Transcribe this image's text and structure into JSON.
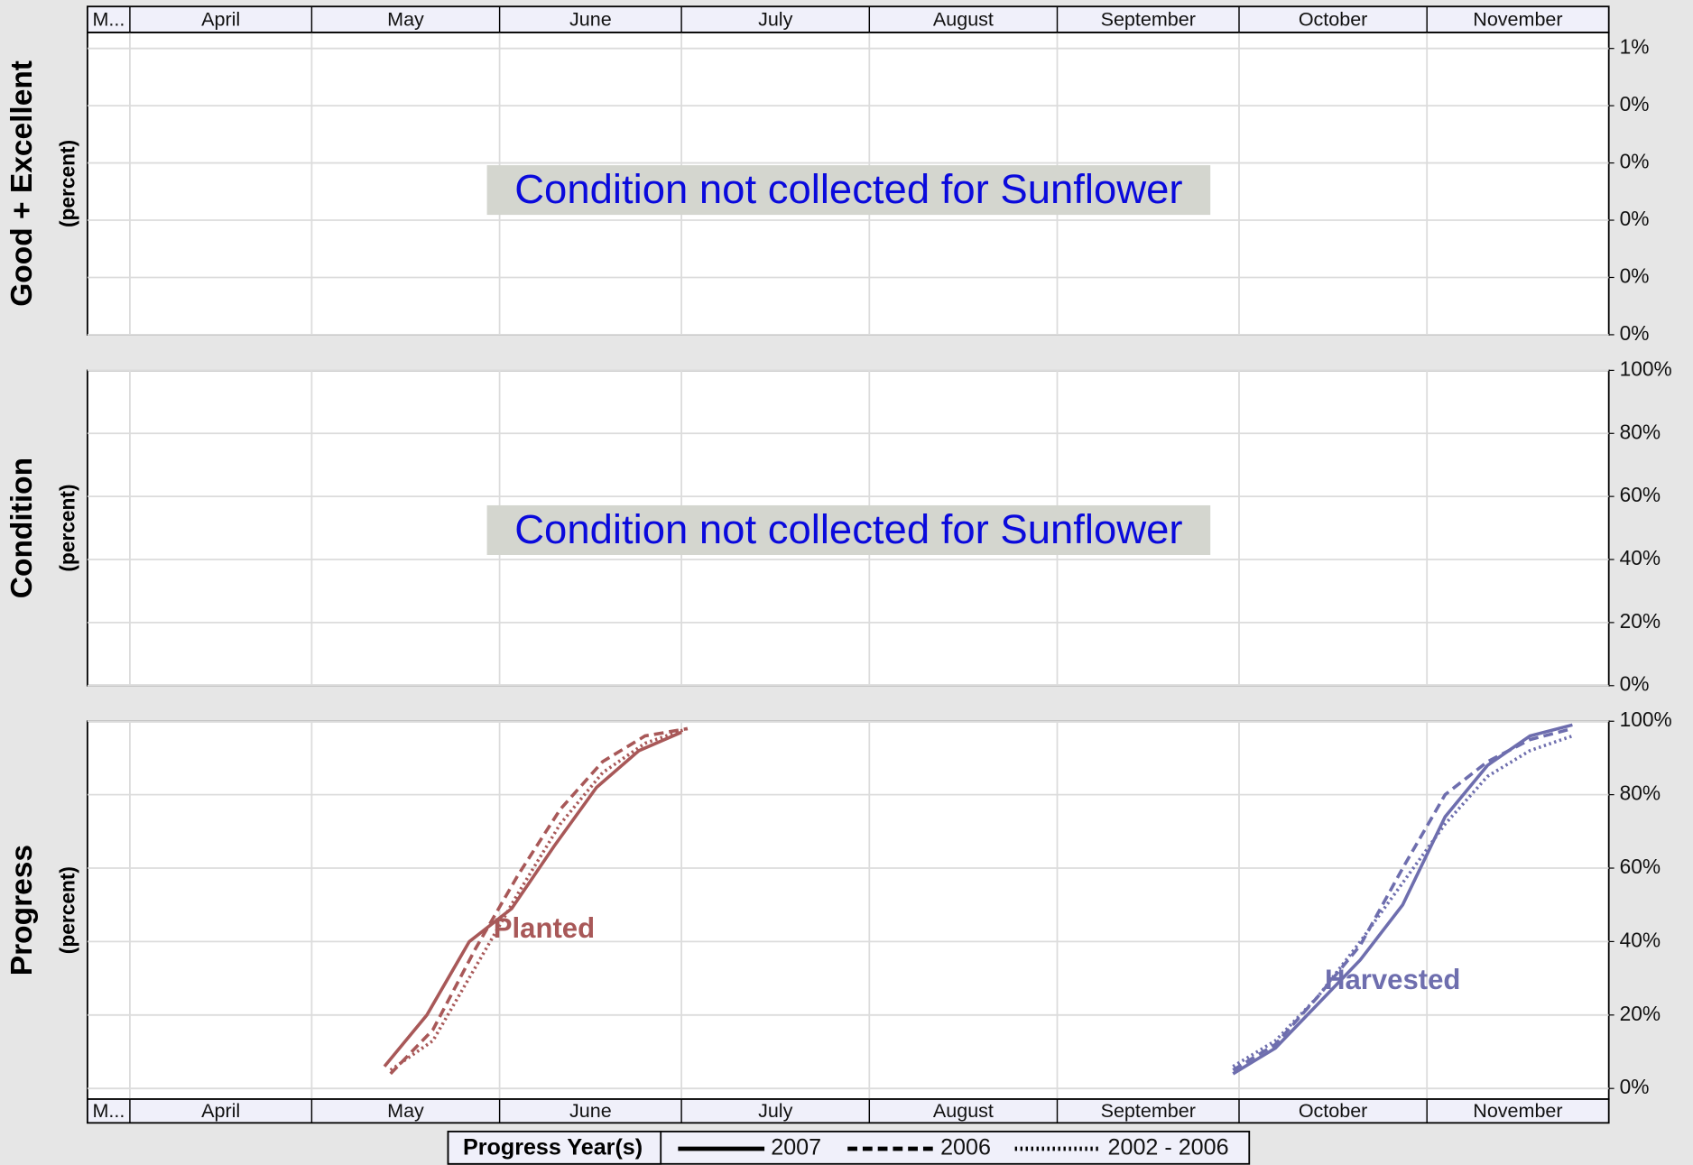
{
  "time_axis": {
    "labels": [
      "M...",
      "April",
      "May",
      "June",
      "July",
      "August",
      "September",
      "October",
      "November"
    ],
    "xticks": [
      90,
      120,
      151,
      181,
      212,
      243,
      273,
      304
    ],
    "xlim": [
      83,
      334
    ]
  },
  "legend": {
    "title": "Progress Year(s)"
  },
  "chart_data": [
    {
      "type": "line",
      "ylabel": "Good + Excellent",
      "ysublabel": "(percent)",
      "annotation": "Condition not collected for Sunflower",
      "ylim": [
        0,
        0.528
      ],
      "yticks": [
        {
          "value": 0,
          "label": "0%"
        },
        {
          "value": 0.1,
          "label": "0%"
        },
        {
          "value": 0.2,
          "label": "0%"
        },
        {
          "value": 0.3,
          "label": "0%"
        },
        {
          "value": 0.4,
          "label": "0%"
        },
        {
          "value": 0.5,
          "label": "1%"
        }
      ],
      "grid": true
    },
    {
      "type": "line",
      "ylabel": "Condition",
      "ysublabel": "(percent)",
      "annotation": "Condition not collected for Sunflower",
      "ylim": [
        0,
        100
      ],
      "yticks": [
        {
          "value": 0,
          "label": "0%"
        },
        {
          "value": 20,
          "label": "20%"
        },
        {
          "value": 40,
          "label": "40%"
        },
        {
          "value": 60,
          "label": "60%"
        },
        {
          "value": 80,
          "label": "80%"
        },
        {
          "value": 100,
          "label": "100%"
        }
      ],
      "grid": true
    },
    {
      "type": "line",
      "ylabel": "Progress",
      "ysublabel": "(percent)",
      "ylim": [
        -2.9,
        100
      ],
      "yticks": [
        {
          "value": 0,
          "label": "0%"
        },
        {
          "value": 20,
          "label": "20%"
        },
        {
          "value": 40,
          "label": "40%"
        },
        {
          "value": 60,
          "label": "60%"
        },
        {
          "value": 80,
          "label": "80%"
        },
        {
          "value": 100,
          "label": "100%"
        }
      ],
      "grid": true,
      "groups": [
        {
          "name": "Planted",
          "color": "#a85858",
          "series": [
            {
              "name": "2007",
              "x": [
                132,
                139,
                146,
                153,
                160,
                167,
                174,
                181
              ],
              "values": [
                6,
                20,
                40,
                49,
                66,
                82,
                92,
                97
              ]
            },
            {
              "name": "2006",
              "x": [
                133,
                140,
                147,
                154,
                161,
                168,
                175,
                182
              ],
              "values": [
                4,
                16,
                38,
                58,
                76,
                89,
                96,
                98
              ]
            },
            {
              "name": "2002 - 2006",
              "x": [
                133,
                140,
                147,
                154,
                161,
                168,
                175,
                182
              ],
              "values": [
                5,
                13,
                33,
                53,
                72,
                86,
                94,
                98
              ]
            }
          ]
        },
        {
          "name": "Harvested",
          "color": "#6e6eae",
          "series": [
            {
              "name": "2007",
              "x": [
                272,
                279,
                286,
                293,
                300,
                307,
                314,
                321,
                328
              ],
              "values": [
                4,
                11,
                23,
                35,
                50,
                74,
                88,
                96,
                99
              ]
            },
            {
              "name": "2006",
              "x": [
                272,
                279,
                286,
                293,
                300,
                307,
                314,
                321,
                328
              ],
              "values": [
                5,
                12,
                25,
                39,
                60,
                80,
                89,
                95,
                98
              ]
            },
            {
              "name": "2002 - 2006",
              "x": [
                272,
                279,
                286,
                293,
                300,
                307,
                314,
                321,
                328
              ],
              "values": [
                6,
                13,
                25,
                40,
                56,
                72,
                85,
                92,
                96
              ]
            }
          ]
        }
      ]
    }
  ]
}
